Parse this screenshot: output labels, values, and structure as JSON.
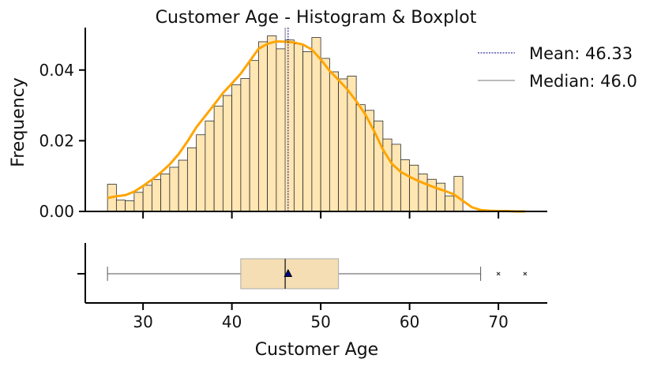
{
  "chart_data": [
    {
      "type": "bar",
      "title": "Customer Age - Histogram & Boxplot",
      "ylabel": "Frequency",
      "xlim": [
        23.5,
        75.5
      ],
      "ylim": [
        0.0,
        0.052
      ],
      "x_ticks": [
        30,
        40,
        50,
        60,
        70
      ],
      "y_ticks": [
        0.0,
        0.02,
        0.04
      ],
      "y_tick_labels": [
        "0.00",
        "0.02",
        "0.04"
      ],
      "grid": false,
      "legend_position": "top-right",
      "colors": {
        "bar_fill": "#ffe6b3",
        "bar_edge": "#2b2b2b",
        "kde_line": "#ffa500",
        "mean_line": "#00008b",
        "median_line": "#777777"
      },
      "bin_start": 26,
      "bin_width": 1,
      "values": [
        0.0077,
        0.0032,
        0.003,
        0.0054,
        0.0074,
        0.009,
        0.0106,
        0.0125,
        0.0145,
        0.018,
        0.0217,
        0.0256,
        0.0298,
        0.0328,
        0.0358,
        0.0376,
        0.0427,
        0.048,
        0.0497,
        0.046,
        0.0485,
        0.0474,
        0.0452,
        0.0492,
        0.0433,
        0.0395,
        0.0375,
        0.0383,
        0.0302,
        0.0286,
        0.0256,
        0.0205,
        0.019,
        0.0146,
        0.0131,
        0.0106,
        0.0091,
        0.008,
        0.0044,
        0.0099
      ],
      "kde": {
        "x": [
          26,
          27,
          28,
          29,
          30,
          31,
          32,
          33,
          34,
          35,
          36,
          37,
          38,
          39,
          40,
          41,
          42,
          43,
          44,
          45,
          46,
          47,
          48,
          49,
          50,
          51,
          52,
          53,
          54,
          55,
          56,
          57,
          58,
          59,
          60,
          61,
          62,
          63,
          64,
          65,
          66,
          67,
          68,
          69,
          70,
          71,
          72,
          73
        ],
        "y": [
          0.0038,
          0.0043,
          0.0046,
          0.0056,
          0.0072,
          0.009,
          0.011,
          0.0133,
          0.0162,
          0.0198,
          0.0238,
          0.027,
          0.0302,
          0.0335,
          0.0362,
          0.039,
          0.0425,
          0.046,
          0.0474,
          0.0481,
          0.048,
          0.0478,
          0.0472,
          0.0458,
          0.043,
          0.0398,
          0.0372,
          0.0345,
          0.0312,
          0.0275,
          0.0228,
          0.0175,
          0.0135,
          0.0112,
          0.0098,
          0.0086,
          0.0076,
          0.0066,
          0.0058,
          0.0048,
          0.003,
          0.0012,
          0.0004,
          0.0002,
          0.0001,
          0.0001,
          0.0,
          0.0
        ]
      },
      "mean": 46.33,
      "median": 46.0,
      "legend": [
        {
          "label": "Mean: 46.33",
          "style": "dashed",
          "color": "#00008b"
        },
        {
          "label": "Median: 46.0",
          "style": "solid",
          "color": "#777777"
        }
      ]
    },
    {
      "type": "box",
      "xlabel": "Customer Age",
      "x_ticks": [
        30,
        40,
        50,
        60,
        70
      ],
      "whisker_low": 26,
      "q1": 41,
      "median": 46,
      "mean": 46.33,
      "q3": 52,
      "whisker_high": 68,
      "outliers": [
        70,
        73
      ],
      "colors": {
        "box_fill": "#f5deb3",
        "box_edge": "#aaaaaa",
        "line": "#555555",
        "median_line": "#333333",
        "mean_marker": "#00008b"
      }
    }
  ]
}
